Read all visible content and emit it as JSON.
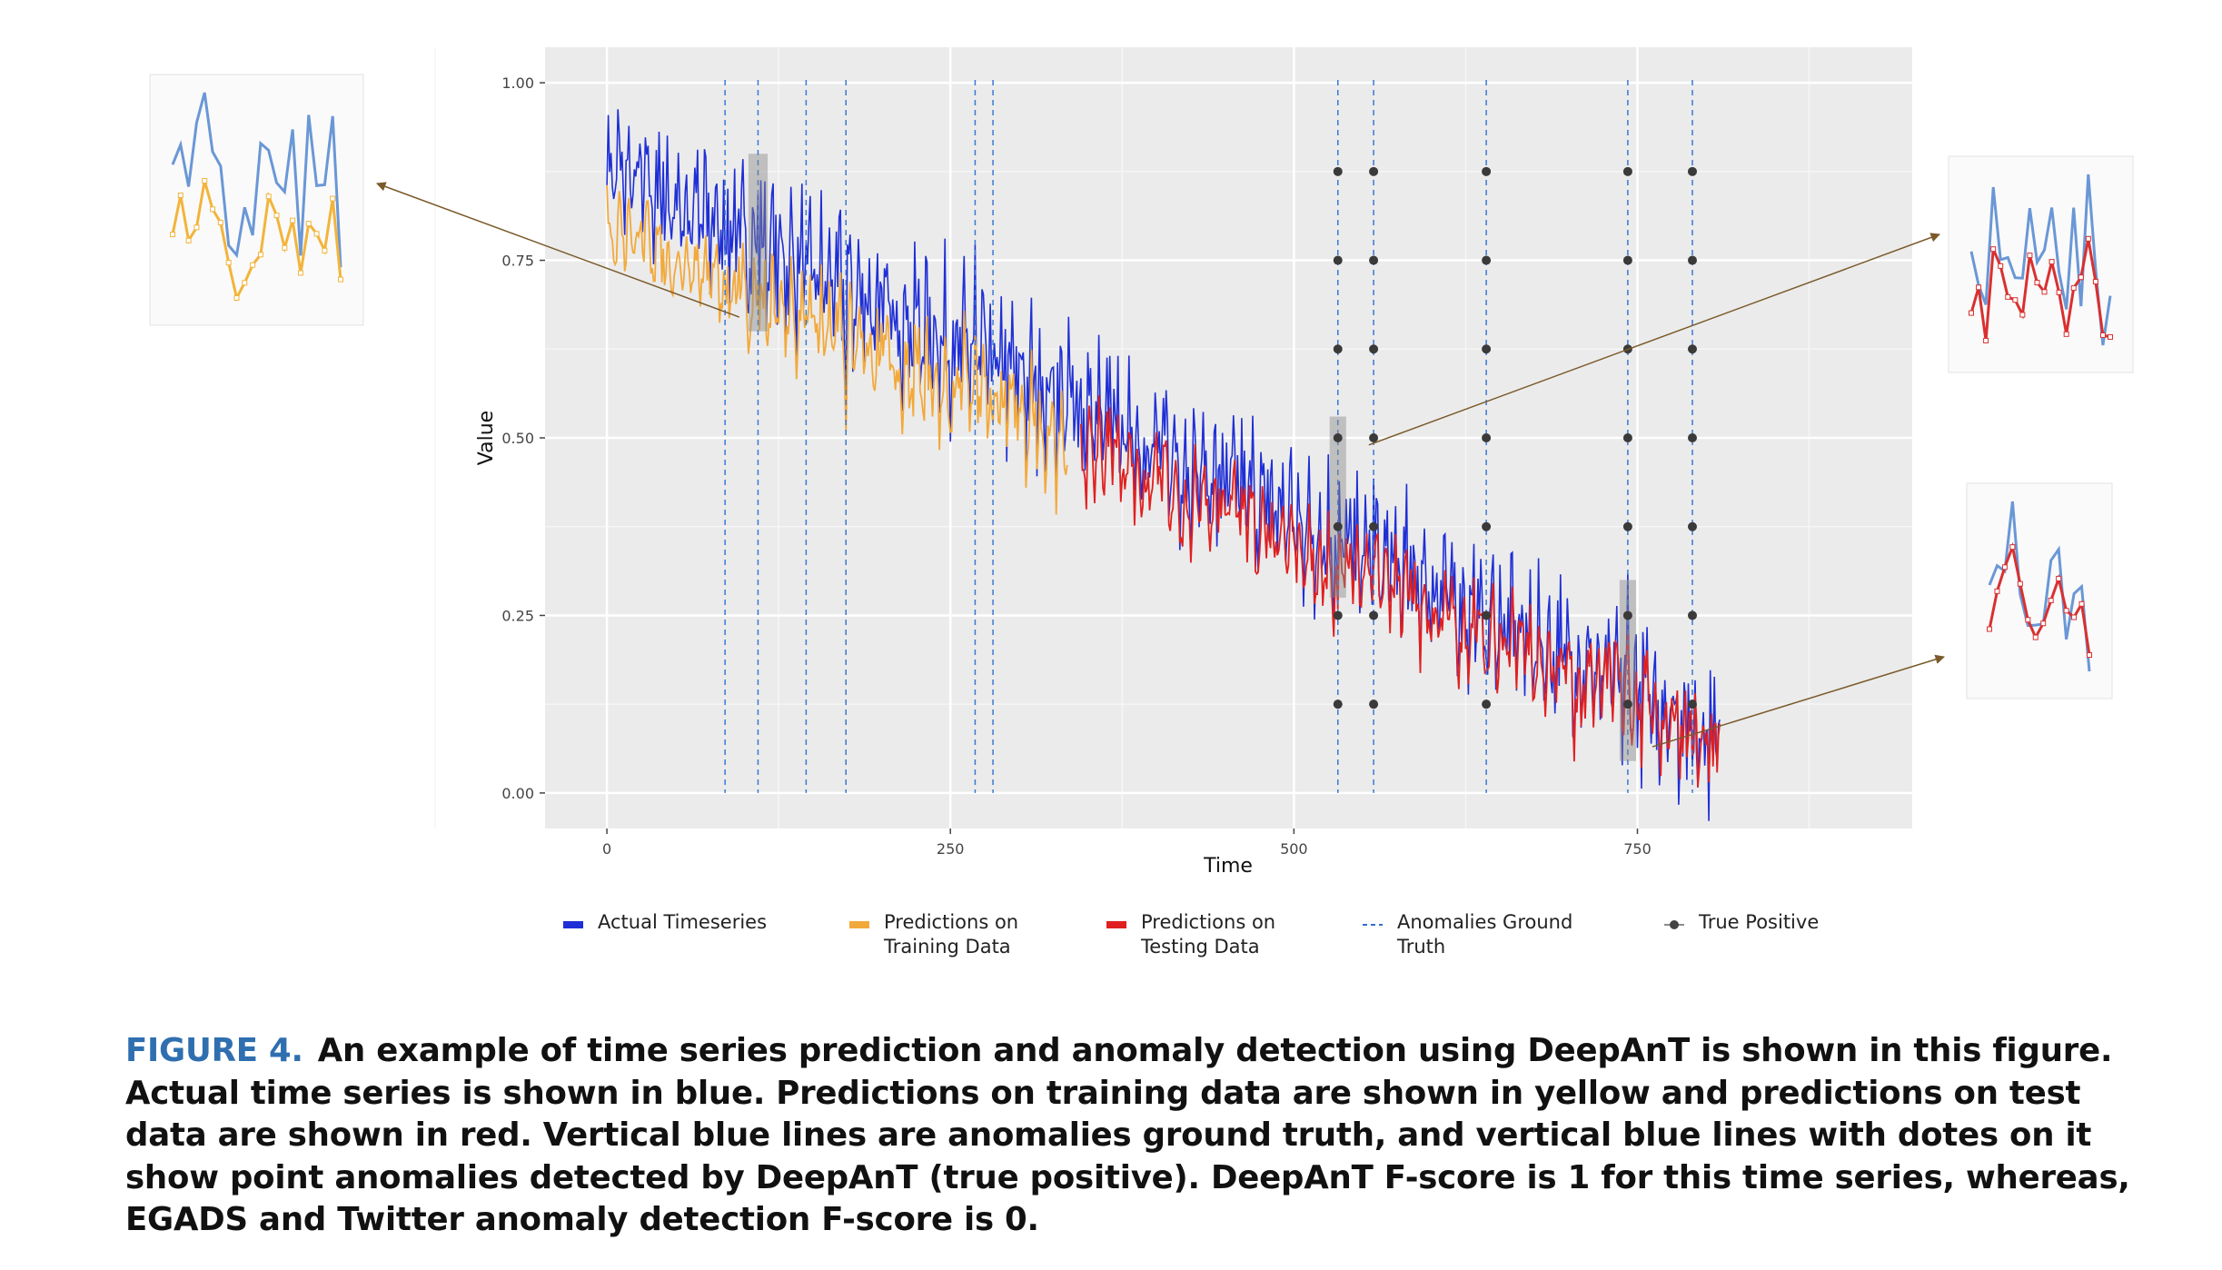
{
  "chart_data": {
    "type": "line",
    "xlabel": "Time",
    "ylabel": "Value",
    "xlim": [
      -45,
      950
    ],
    "ylim": [
      -0.05,
      1.05
    ],
    "x_ticks": [
      0,
      250,
      500,
      750
    ],
    "x_tick_labels": [
      "0",
      "250",
      "500",
      "750"
    ],
    "y_ticks": [
      0,
      0.25,
      0.5,
      0.75,
      1.0
    ],
    "y_tick_labels": [
      "0.00",
      "0.25",
      "0.50",
      "0.75",
      "1.00"
    ],
    "grid": true,
    "legend_position": "bottom",
    "series": [
      {
        "name": "Actual Timeseries",
        "color": "#1f2fd6",
        "x_range": [
          0,
          810
        ],
        "y_trend": [
          0.88,
          0.08
        ],
        "amplitude": 0.12
      },
      {
        "name": "Predictions on Training Data",
        "color": "#f2a93b",
        "x_range": [
          0,
          335
        ],
        "y_trend": [
          0.88,
          0.55
        ],
        "amplitude": 0.12
      },
      {
        "name": "Predictions on Testing Data",
        "color": "#e02020",
        "x_range": [
          345,
          810
        ],
        "y_trend": [
          0.58,
          0.08
        ],
        "amplitude": 0.12
      }
    ],
    "anomalies_ground_truth_x": [
      86,
      110,
      145,
      174,
      268,
      281,
      532,
      558,
      640,
      743,
      790
    ],
    "true_positive_x": [
      532,
      558,
      640,
      743,
      790
    ],
    "true_positive_y": [
      0.125,
      0.25,
      0.375,
      0.5,
      0.625,
      0.75,
      0.875
    ],
    "highlight_boxes_x": [
      [
        103,
        117
      ],
      [
        526,
        538
      ],
      [
        737,
        749
      ]
    ],
    "legend": [
      {
        "name": "Actual Timeseries",
        "lines": [
          "Actual Timeseries"
        ],
        "symbol": "bar",
        "color": "#1f2fd6"
      },
      {
        "name": "Predictions on Training Data",
        "lines": [
          "Predictions on",
          "Training Data"
        ],
        "symbol": "bar",
        "color": "#f2a93b"
      },
      {
        "name": "Predictions on Testing Data",
        "lines": [
          "Predictions on",
          "Testing Data"
        ],
        "symbol": "bar",
        "color": "#e02020"
      },
      {
        "name": "Anomalies Ground Truth",
        "lines": [
          "Anomalies Ground",
          "Truth"
        ],
        "symbol": "dash",
        "color": "#2f6fd0"
      },
      {
        "name": "True Positive",
        "lines": [
          "True Positive"
        ],
        "symbol": "dot",
        "color": "#444444"
      }
    ],
    "insets": [
      {
        "name": "training-zoom",
        "colors": [
          "#6a97d6",
          "#f2b43b"
        ]
      },
      {
        "name": "testing-zoom-1",
        "colors": [
          "#6a97d6",
          "#d93030"
        ]
      },
      {
        "name": "testing-zoom-2",
        "colors": [
          "#6a97d6",
          "#d93030"
        ]
      }
    ]
  },
  "caption": {
    "label": "FIGURE 4.",
    "text": "An example of time series prediction and anomaly detection using DeepAnT is shown in this figure. Actual time series is shown in blue. Predictions on training data are shown in yellow and predictions on test data are shown in red. Vertical blue lines are anomalies ground truth, and vertical blue lines with dotes on it show point anomalies detected by DeepAnT (true positive). DeepAnT F-score is 1 for this time series, whereas, EGADS and Twitter anomaly detection F-score is 0."
  }
}
